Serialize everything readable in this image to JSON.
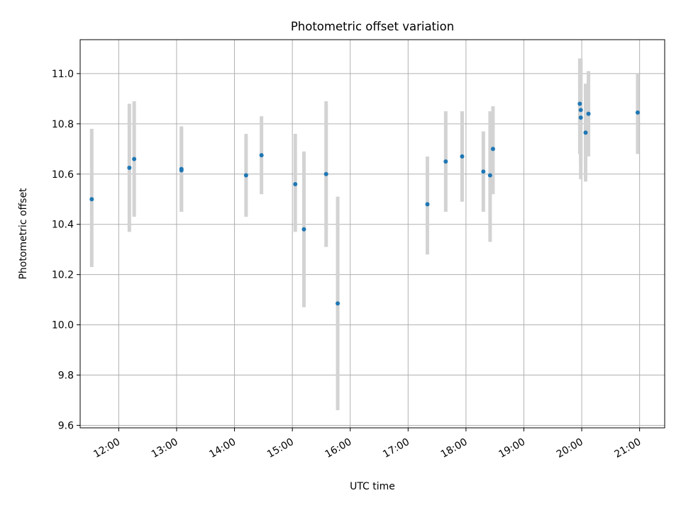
{
  "chart_data": {
    "type": "scatter",
    "title": "Photometric offset variation",
    "xlabel": "UTC time",
    "ylabel": "Photometric offset",
    "xlim": [
      "11:20",
      "21:26"
    ],
    "ylim": [
      9.59,
      11.135
    ],
    "x_ticks": [
      "12:00",
      "13:00",
      "14:00",
      "15:00",
      "16:00",
      "17:00",
      "18:00",
      "19:00",
      "20:00",
      "21:00"
    ],
    "y_ticks": [
      "9.6",
      "9.8",
      "10.0",
      "10.2",
      "10.4",
      "10.6",
      "10.8",
      "11.0"
    ],
    "grid": true,
    "marker_color": "#1f77b4",
    "errorbar_color": "#d3d3d3",
    "points": [
      {
        "time": "11:32",
        "offset": 10.5,
        "low": 10.23,
        "high": 10.78
      },
      {
        "time": "12:11",
        "offset": 10.625,
        "low": 10.37,
        "high": 10.88
      },
      {
        "time": "12:16",
        "offset": 10.66,
        "low": 10.43,
        "high": 10.89
      },
      {
        "time": "13:05",
        "offset": 10.62,
        "low": 10.45,
        "high": 10.79
      },
      {
        "time": "13:05",
        "offset": 10.615,
        "low": 10.45,
        "high": 10.78
      },
      {
        "time": "14:12",
        "offset": 10.595,
        "low": 10.43,
        "high": 10.76
      },
      {
        "time": "14:28",
        "offset": 10.675,
        "low": 10.52,
        "high": 10.83
      },
      {
        "time": "15:03",
        "offset": 10.56,
        "low": 10.37,
        "high": 10.76
      },
      {
        "time": "15:12",
        "offset": 10.38,
        "low": 10.07,
        "high": 10.69
      },
      {
        "time": "15:35",
        "offset": 10.6,
        "low": 10.31,
        "high": 10.89
      },
      {
        "time": "15:47",
        "offset": 10.085,
        "low": 9.66,
        "high": 10.51
      },
      {
        "time": "17:20",
        "offset": 10.48,
        "low": 10.28,
        "high": 10.67
      },
      {
        "time": "17:39",
        "offset": 10.65,
        "low": 10.45,
        "high": 10.85
      },
      {
        "time": "17:56",
        "offset": 10.67,
        "low": 10.49,
        "high": 10.85
      },
      {
        "time": "18:18",
        "offset": 10.61,
        "low": 10.45,
        "high": 10.77
      },
      {
        "time": "18:25",
        "offset": 10.595,
        "low": 10.33,
        "high": 10.85
      },
      {
        "time": "18:28",
        "offset": 10.7,
        "low": 10.52,
        "high": 10.87
      },
      {
        "time": "19:58",
        "offset": 10.88,
        "low": 10.68,
        "high": 11.06
      },
      {
        "time": "19:59",
        "offset": 10.855,
        "low": 10.64,
        "high": 11.06
      },
      {
        "time": "19:59",
        "offset": 10.825,
        "low": 10.58,
        "high": 11.06
      },
      {
        "time": "20:04",
        "offset": 10.765,
        "low": 10.57,
        "high": 10.96
      },
      {
        "time": "20:07",
        "offset": 10.84,
        "low": 10.67,
        "high": 11.01
      },
      {
        "time": "20:58",
        "offset": 10.845,
        "low": 10.68,
        "high": 11.0
      }
    ]
  }
}
